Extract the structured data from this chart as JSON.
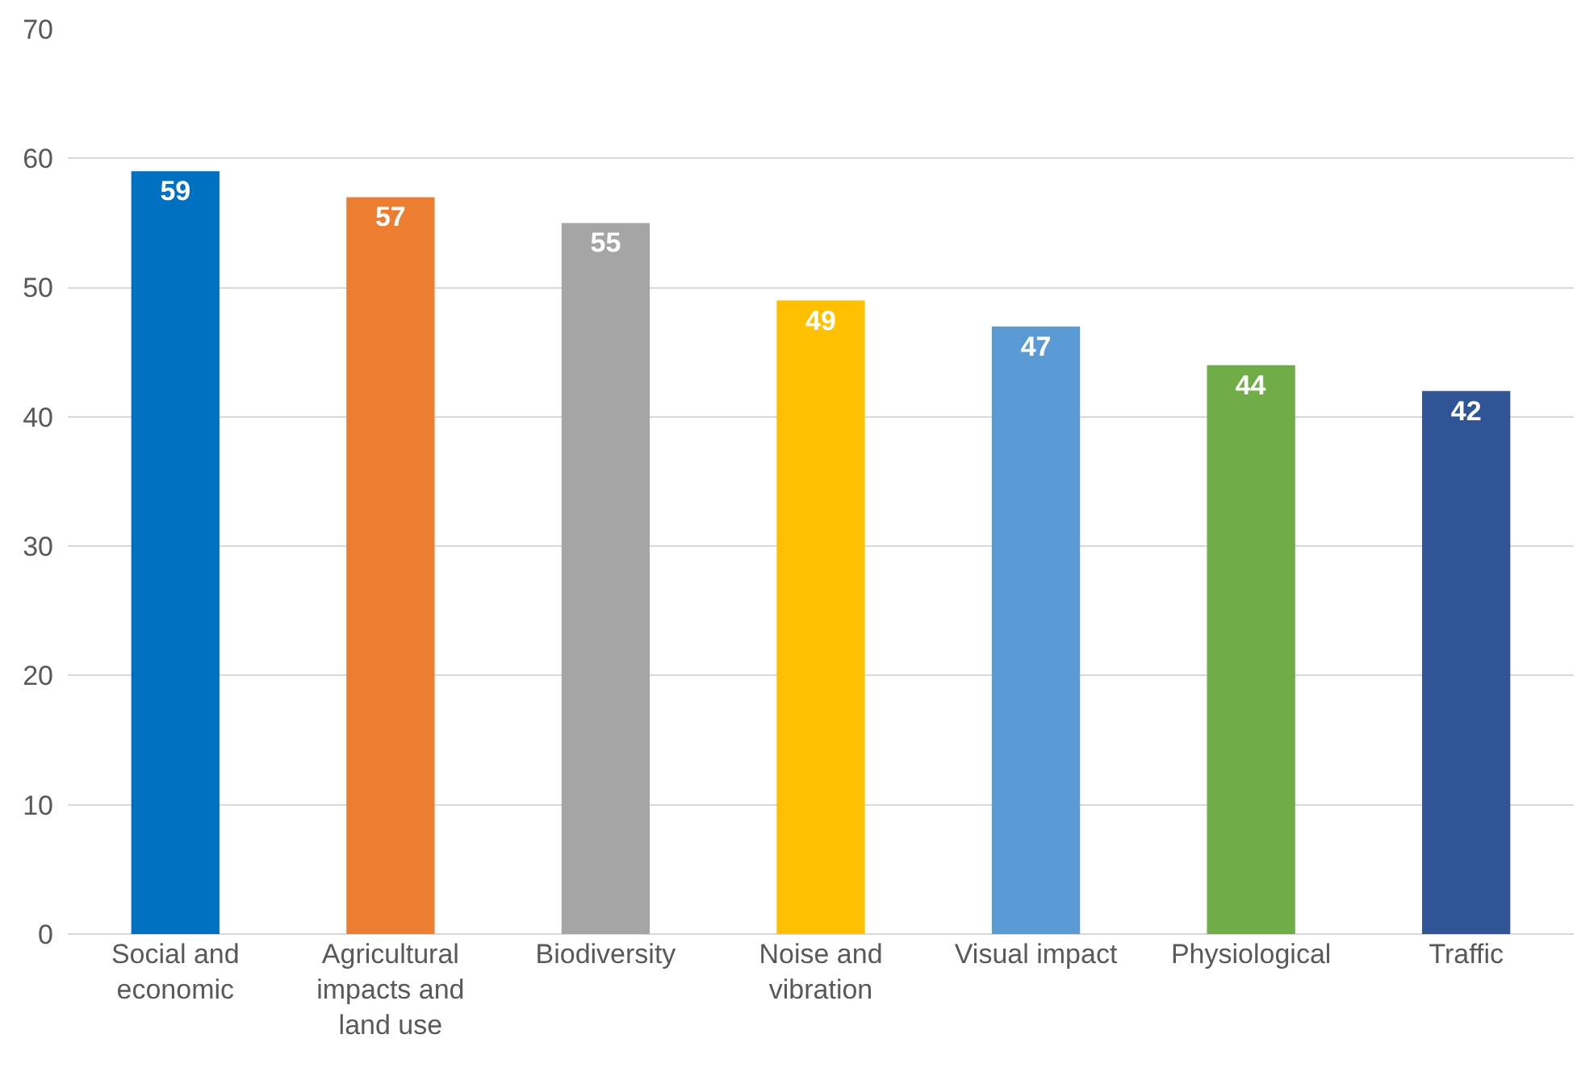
{
  "chart_data": {
    "type": "bar",
    "categories": [
      "Social and economic",
      "Agricultural impacts and land use",
      "Biodiversity",
      "Noise and vibration",
      "Visual impact",
      "Physiological",
      "Traffic"
    ],
    "values": [
      59,
      57,
      55,
      49,
      47,
      44,
      42
    ],
    "colors": [
      "#0070c0",
      "#ed7d31",
      "#a5a5a5",
      "#ffc000",
      "#5b9bd5",
      "#70ad47",
      "#2f5597"
    ],
    "ylim": [
      0,
      70
    ],
    "yticks": [
      0,
      10,
      20,
      30,
      40,
      50,
      60,
      70
    ],
    "grid": "y",
    "data_labels": true
  }
}
